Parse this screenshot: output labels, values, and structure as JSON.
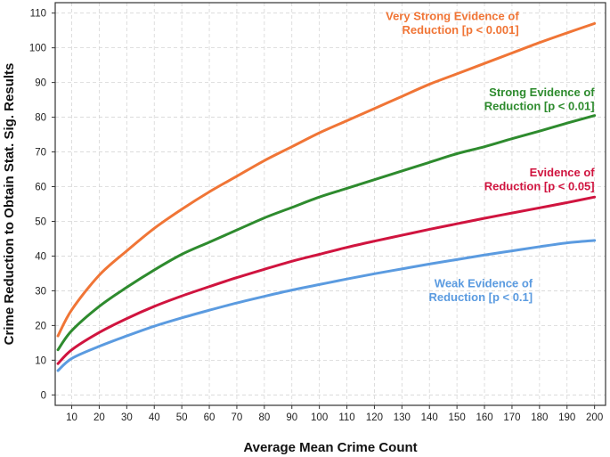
{
  "chart_data": {
    "type": "line",
    "title": "",
    "xlabel": "Average Mean Crime Count",
    "ylabel": "Crime Reduction to Obtain Stat. Sig. Results",
    "xlim": [
      4,
      204
    ],
    "ylim": [
      -3,
      113
    ],
    "xticks": [
      10,
      20,
      30,
      40,
      50,
      60,
      70,
      80,
      90,
      100,
      110,
      120,
      130,
      140,
      150,
      160,
      170,
      180,
      190,
      200
    ],
    "yticks": [
      0,
      10,
      20,
      30,
      40,
      50,
      60,
      70,
      80,
      90,
      100,
      110
    ],
    "grid": true,
    "x": [
      5,
      10,
      20,
      30,
      40,
      50,
      60,
      70,
      80,
      90,
      100,
      110,
      120,
      130,
      140,
      150,
      160,
      170,
      180,
      190,
      200
    ],
    "series": [
      {
        "name": "Very Strong Evidence of Reduction [p < 0.001]",
        "label_lines": [
          "Very Strong Evidence of",
          "Reduction [p < 0.001]"
        ],
        "color": "#F07536",
        "values": [
          17,
          24.5,
          34.5,
          41.5,
          48,
          53.5,
          58.5,
          63,
          67.5,
          71.5,
          75.5,
          79,
          82.5,
          86,
          89.5,
          92.5,
          95.5,
          98.5,
          101.5,
          104.3,
          107
        ]
      },
      {
        "name": "Strong Evidence of Reduction [p < 0.01]",
        "label_lines": [
          "Strong Evidence of",
          "Reduction [p < 0.01]"
        ],
        "color": "#2E8B2E",
        "values": [
          13,
          18.5,
          25.5,
          31,
          36,
          40.5,
          44,
          47.5,
          51,
          54,
          57,
          59.5,
          62,
          64.5,
          67,
          69.5,
          71.5,
          73.8,
          76,
          78.3,
          80.5
        ]
      },
      {
        "name": "Evidence of Reduction [p < 0.05]",
        "label_lines": [
          "Evidence of",
          "Reduction [p < 0.05]"
        ],
        "color": "#D0143F",
        "values": [
          9,
          13,
          18,
          22,
          25.5,
          28.5,
          31.2,
          33.8,
          36.2,
          38.5,
          40.5,
          42.5,
          44.3,
          46,
          47.7,
          49.3,
          50.9,
          52.4,
          53.9,
          55.4,
          57
        ]
      },
      {
        "name": "Weak Evidence of Reduction [p < 0.1]",
        "label_lines": [
          "Weak Evidence of",
          "Reduction [p < 0.1]"
        ],
        "color": "#5B9BE0",
        "values": [
          7,
          10.5,
          14,
          17,
          19.8,
          22.2,
          24.4,
          26.5,
          28.4,
          30.2,
          31.8,
          33.4,
          34.9,
          36.3,
          37.7,
          39,
          40.3,
          41.5,
          42.7,
          43.8,
          44.5
        ]
      }
    ]
  }
}
